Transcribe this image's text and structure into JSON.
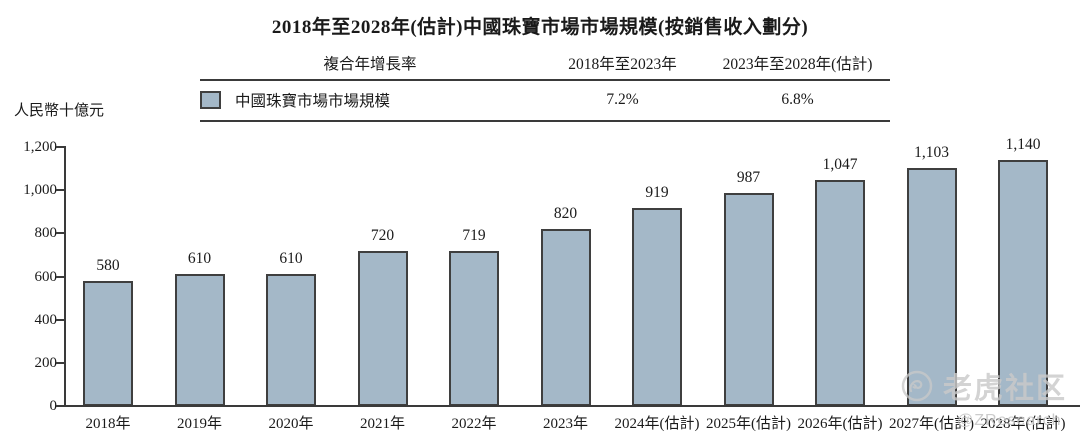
{
  "title": "2018年至2028年(估計)中國珠寶市場市場規模(按銷售收入劃分)",
  "unit_label": "人民幣十億元",
  "cagr_table": {
    "col1_header": "複合年增長率",
    "col2_header": "2018年至2023年",
    "col3_header": "2023年至2028年(估計)",
    "series_label": "中國珠寶市場市場規模",
    "cagr_2018_2023": "7.2%",
    "cagr_2023_2028": "6.8%"
  },
  "chart_data": {
    "type": "bar",
    "title": "2018年至2028年(估計)中國珠寶市場市場規模(按銷售收入劃分)",
    "xlabel": "",
    "ylabel": "人民幣十億元",
    "categories": [
      "2018年",
      "2019年",
      "2020年",
      "2021年",
      "2022年",
      "2023年",
      "2024年(估計)",
      "2025年(估計)",
      "2026年(估計)",
      "2027年(估計)",
      "2028年(估計)"
    ],
    "values": [
      580,
      610,
      610,
      720,
      719,
      820,
      919,
      987,
      1047,
      1103,
      1140
    ],
    "value_labels": [
      "580",
      "610",
      "610",
      "720",
      "719",
      "820",
      "919",
      "987",
      "1,047",
      "1,103",
      "1,140"
    ],
    "ylim": [
      0,
      1200
    ],
    "ytick_step": 200,
    "yticklabels": [
      "0",
      "200",
      "400",
      "600",
      "800",
      "1,000",
      "1,200"
    ],
    "grid": false,
    "legend": [
      "中國珠寶市場市場規模"
    ],
    "legend_position": "top-table",
    "bar_color": "#a4b8c8",
    "bar_border_color": "#3f3f3f",
    "axis_color": "#3a3a3a"
  },
  "watermark": {
    "community_name": "老虎社区",
    "handle": "@ZResearch",
    "icon": "tiger-icon"
  }
}
